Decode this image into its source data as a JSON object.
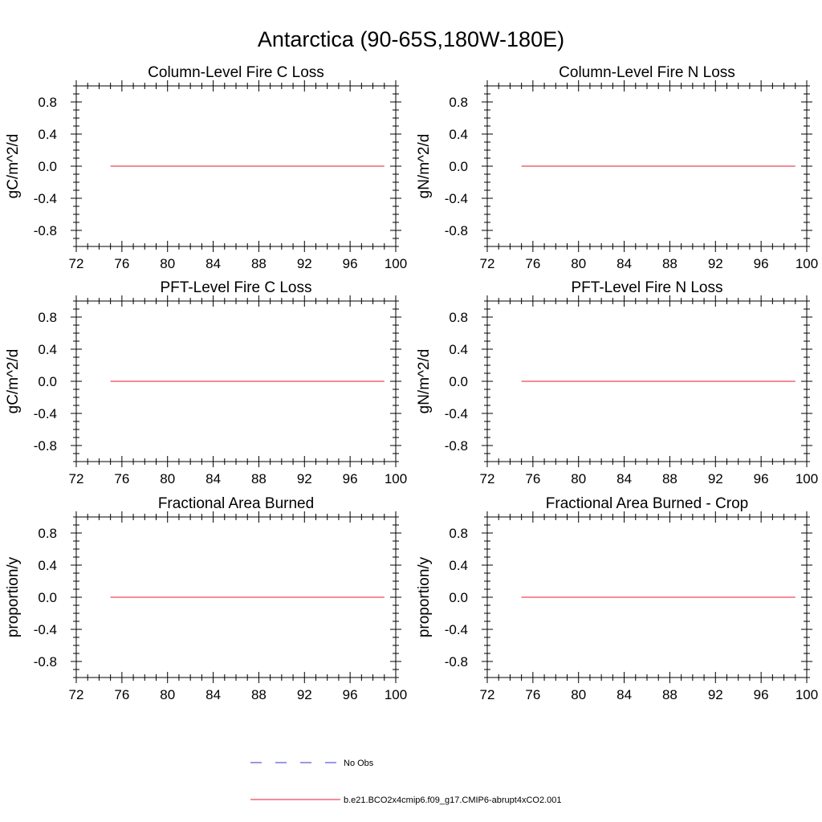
{
  "figure_title": "Antarctica (90-65S,180W-180E)",
  "chart_data": [
    {
      "type": "line",
      "title": "Column-Level Fire C Loss",
      "ylabel": "gC/m^2/d",
      "xlabel": "",
      "xlim": [
        72,
        100
      ],
      "ylim": [
        -1,
        1
      ],
      "xticks": [
        72,
        76,
        80,
        84,
        88,
        92,
        96,
        100
      ],
      "yticks": [
        0.8,
        0.4,
        0.0,
        -0.4,
        -0.8
      ],
      "series": [
        {
          "color": "#e8192c",
          "x": [
            75,
            99
          ],
          "y": [
            0,
            0
          ]
        }
      ]
    },
    {
      "type": "line",
      "title": "Column-Level Fire N Loss",
      "ylabel": "gN/m^2/d",
      "xlabel": "",
      "xlim": [
        72,
        100
      ],
      "ylim": [
        -1,
        1
      ],
      "xticks": [
        72,
        76,
        80,
        84,
        88,
        92,
        96,
        100
      ],
      "yticks": [
        0.8,
        0.4,
        0.0,
        -0.4,
        -0.8
      ],
      "series": [
        {
          "color": "#e8192c",
          "x": [
            75,
            99
          ],
          "y": [
            0,
            0
          ]
        }
      ]
    },
    {
      "type": "line",
      "title": "PFT-Level Fire C Loss",
      "ylabel": "gC/m^2/d",
      "xlabel": "",
      "xlim": [
        72,
        100
      ],
      "ylim": [
        -1,
        1
      ],
      "xticks": [
        72,
        76,
        80,
        84,
        88,
        92,
        96,
        100
      ],
      "yticks": [
        0.8,
        0.4,
        0.0,
        -0.4,
        -0.8
      ],
      "series": [
        {
          "color": "#e8192c",
          "x": [
            75,
            99
          ],
          "y": [
            0,
            0
          ]
        }
      ]
    },
    {
      "type": "line",
      "title": "PFT-Level Fire N Loss",
      "ylabel": "gN/m^2/d",
      "xlabel": "",
      "xlim": [
        72,
        100
      ],
      "ylim": [
        -1,
        1
      ],
      "xticks": [
        72,
        76,
        80,
        84,
        88,
        92,
        96,
        100
      ],
      "yticks": [
        0.8,
        0.4,
        0.0,
        -0.4,
        -0.8
      ],
      "series": [
        {
          "color": "#e8192c",
          "x": [
            75,
            99
          ],
          "y": [
            0,
            0
          ]
        }
      ]
    },
    {
      "type": "line",
      "title": "Fractional Area Burned",
      "ylabel": "proportion/y",
      "xlabel": "",
      "xlim": [
        72,
        100
      ],
      "ylim": [
        -1,
        1
      ],
      "xticks": [
        72,
        76,
        80,
        84,
        88,
        92,
        96,
        100
      ],
      "yticks": [
        0.8,
        0.4,
        0.0,
        -0.4,
        -0.8
      ],
      "series": [
        {
          "color": "#e8192c",
          "x": [
            75,
            99
          ],
          "y": [
            0,
            0
          ]
        }
      ]
    },
    {
      "type": "line",
      "title": "Fractional Area Burned - Crop",
      "ylabel": "proportion/y",
      "xlabel": "",
      "xlim": [
        72,
        100
      ],
      "ylim": [
        -1,
        1
      ],
      "xticks": [
        72,
        76,
        80,
        84,
        88,
        92,
        96,
        100
      ],
      "yticks": [
        0.8,
        0.4,
        0.0,
        -0.4,
        -0.8
      ],
      "series": [
        {
          "color": "#e8192c",
          "x": [
            75,
            99
          ],
          "y": [
            0,
            0
          ]
        }
      ]
    }
  ],
  "legend": [
    {
      "label": "No Obs",
      "color": "#3333cc",
      "style": "dashed"
    },
    {
      "label": "b.e21.BCO2x4cmip6.f09_g17.CMIP6-abrupt4xCO2.001",
      "color": "#e8192c",
      "style": "solid"
    }
  ]
}
